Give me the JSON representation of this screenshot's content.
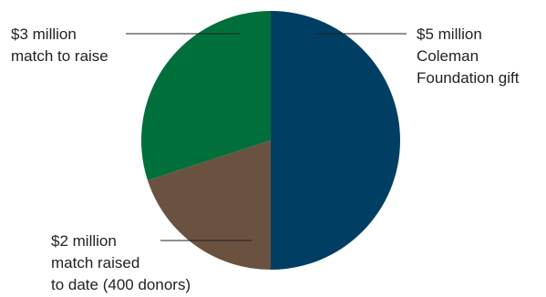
{
  "chart_data": {
    "type": "pie",
    "title": "",
    "slices": [
      {
        "label_lines": [
          "$5 million",
          "Coleman",
          "Foundation gift"
        ],
        "value": 5,
        "color": "#003f63"
      },
      {
        "label_lines": [
          "$2 million",
          "match raised",
          "to date (400 donors)"
        ],
        "value": 2,
        "color": "#6b5240"
      },
      {
        "label_lines": [
          "$3 million",
          "match to raise"
        ],
        "value": 3,
        "color": "#006f3b"
      }
    ],
    "start_angle_deg": 0,
    "direction": "clockwise",
    "unit": "million USD"
  }
}
